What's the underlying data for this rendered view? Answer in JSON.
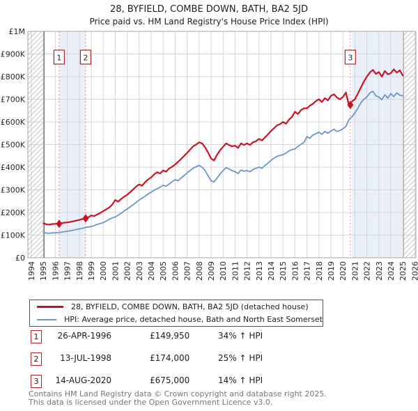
{
  "header": {
    "title": "28, BYFIELD, COMBE DOWN, BATH, BA2 5JD",
    "subtitle": "Price paid vs. HM Land Registry's House Price Index (HPI)"
  },
  "colors": {
    "property_line": "#cc1122",
    "hpi_line": "#6b96c9",
    "sale_dashed_line": "#f47f7f",
    "shaded_band": "#eaf0fa",
    "gridline": "#d6d6d6",
    "plot_border": "#a6a6a6",
    "axis_line": "#666666",
    "hatch_line": "#c6c6c6",
    "marker_box_border": "#b22222",
    "tick_text": "#262626"
  },
  "chart_data": {
    "type": "line",
    "title": "28, BYFIELD, COMBE DOWN, BATH, BA2 5JD",
    "subtitle": "Price paid vs. HM Land Registry's House Price Index (HPI)",
    "grid": true,
    "legend_position": "below",
    "xlim_years": [
      1993.71,
      2026.09
    ],
    "ylim_gbp": [
      0,
      1000000
    ],
    "x_tick_labels": [
      "1994",
      "1995",
      "1996",
      "1997",
      "1998",
      "1999",
      "2000",
      "2001",
      "2002",
      "2003",
      "2004",
      "2005",
      "2006",
      "2007",
      "2008",
      "2009",
      "2010",
      "2011",
      "2012",
      "2013",
      "2014",
      "2015",
      "2016",
      "2017",
      "2018",
      "2019",
      "2020",
      "2021",
      "2022",
      "2023",
      "2024",
      "2025",
      "2026"
    ],
    "y_ticks": [
      {
        "label": "£0",
        "value_k": 0
      },
      {
        "label": "£100K",
        "value_k": 100
      },
      {
        "label": "£200K",
        "value_k": 200
      },
      {
        "label": "£300K",
        "value_k": 300
      },
      {
        "label": "£400K",
        "value_k": 400
      },
      {
        "label": "£500K",
        "value_k": 500
      },
      {
        "label": "£600K",
        "value_k": 600
      },
      {
        "label": "£700K",
        "value_k": 700
      },
      {
        "label": "£800K",
        "value_k": 800
      },
      {
        "label": "£900K",
        "value_k": 900
      },
      {
        "label": "£1M",
        "value_k": 1000
      }
    ],
    "series": [
      {
        "name": "28, BYFIELD, COMBE DOWN, BATH, BA2 5JD (detached house)",
        "color": "#cc1122",
        "line_width": 2.2,
        "start_year": 1995.0,
        "step_years": 0.25,
        "values_gbp_thousands": [
          152,
          148,
          146,
          149,
          150,
          150,
          152,
          155,
          156,
          158,
          161,
          164,
          167,
          171,
          175,
          178,
          187,
          184,
          191,
          198,
          206,
          214,
          222,
          235,
          255,
          248,
          260,
          270,
          278,
          290,
          302,
          315,
          324,
          318,
          334,
          346,
          355,
          368,
          378,
          372,
          386,
          380,
          394,
          402,
          412,
          424,
          436,
          450,
          463,
          478,
          492,
          500,
          510,
          505,
          488,
          465,
          438,
          430,
          455,
          475,
          490,
          505,
          498,
          492,
          495,
          485,
          505,
          498,
          505,
          498,
          510,
          515,
          525,
          518,
          532,
          545,
          560,
          572,
          585,
          590,
          600,
          592,
          610,
          622,
          645,
          635,
          652,
          660,
          660,
          672,
          680,
          692,
          700,
          688,
          705,
          695,
          715,
          722,
          708,
          700,
          710,
          730,
          675,
          690,
          700,
          725,
          752,
          778,
          800,
          818,
          830,
          812,
          820,
          800,
          825,
          810,
          815,
          832,
          818,
          828,
          805
        ]
      },
      {
        "name": "HPI: Average price, detached house, Bath and North East Somerset",
        "color": "#6b96c9",
        "line_width": 1.8,
        "start_year": 1995.0,
        "step_years": 0.25,
        "values_gbp_thousands": [
          112,
          109,
          108,
          110,
          110,
          111,
          113,
          115,
          117,
          119,
          122,
          125,
          127,
          130,
          133,
          136,
          138,
          142,
          147,
          151,
          155,
          162,
          170,
          176,
          180,
          188,
          197,
          207,
          215,
          225,
          234,
          245,
          255,
          263,
          272,
          282,
          290,
          298,
          305,
          312,
          320,
          316,
          326,
          336,
          345,
          340,
          352,
          363,
          375,
          385,
          395,
          402,
          408,
          400,
          385,
          362,
          340,
          335,
          352,
          370,
          385,
          398,
          392,
          385,
          380,
          372,
          388,
          382,
          385,
          380,
          390,
          395,
          400,
          395,
          408,
          418,
          430,
          440,
          448,
          452,
          455,
          462,
          472,
          478,
          480,
          492,
          500,
          510,
          535,
          528,
          542,
          548,
          555,
          545,
          558,
          550,
          560,
          568,
          558,
          562,
          570,
          580,
          610,
          622,
          640,
          660,
          685,
          700,
          710,
          728,
          735,
          715,
          710,
          698,
          720,
          705,
          725,
          712,
          728,
          718,
          715
        ]
      }
    ],
    "sale_markers": [
      {
        "label": "1",
        "year": 1996.32,
        "price_gbp_thousands": 149.95
      },
      {
        "label": "2",
        "year": 1998.53,
        "price_gbp_thousands": 174
      },
      {
        "label": "3",
        "year": 2020.62,
        "price_gbp_thousands": 675
      }
    ],
    "shaded_bands": [
      {
        "from_year": 1996.32,
        "to_year": 1998.53
      },
      {
        "from_year": 2020.8,
        "to_year": 2025.07
      }
    ],
    "hatched_bands": [
      {
        "from_year": 1993.71,
        "to_year": 1995.06
      },
      {
        "from_year": 2025.07,
        "to_year": 2026.09
      }
    ]
  },
  "legend": {
    "items": [
      {
        "label": "28, BYFIELD, COMBE DOWN, BATH, BA2 5JD (detached house)",
        "color": "#cc1122"
      },
      {
        "label": "HPI: Average price, detached house, Bath and North East Somerset",
        "color": "#6b96c9"
      }
    ]
  },
  "transactions": [
    {
      "num": "1",
      "date": "26-APR-1996",
      "price": "£149,950",
      "hpi_change": "34% ↑ HPI"
    },
    {
      "num": "2",
      "date": "13-JUL-1998",
      "price": "£174,000",
      "hpi_change": "25% ↑ HPI"
    },
    {
      "num": "3",
      "date": "14-AUG-2020",
      "price": "£675,000",
      "hpi_change": "14% ↑ HPI"
    }
  ],
  "footer": {
    "line1": "Contains HM Land Registry data © Crown copyright and database right 2025.",
    "line2": "This data is licensed under the Open Government Licence v3.0."
  }
}
